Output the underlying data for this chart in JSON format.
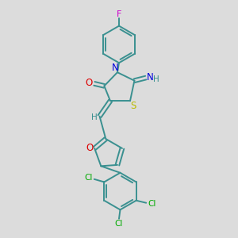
{
  "background_color": "#dcdcdc",
  "bond_color": "#3a9090",
  "atom_colors": {
    "F": "#cc00cc",
    "N": "#0000dd",
    "O": "#dd0000",
    "S": "#bbbb00",
    "Cl": "#00aa00",
    "H": "#3a9090"
  },
  "figsize": [
    3.0,
    3.0
  ],
  "dpi": 100
}
